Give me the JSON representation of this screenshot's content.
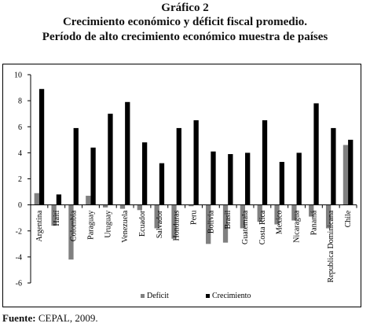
{
  "figure": {
    "label": "Gráfico 2",
    "title": "Crecimiento económico y déficit fiscal promedio.",
    "subtitle": "Período de alto crecimiento económico muestra de países"
  },
  "source": {
    "label": "Fuente:",
    "text": "CEPAL, 2009."
  },
  "chart_data": {
    "type": "bar",
    "categories": [
      "Argentina",
      "Haití",
      "Colombia",
      "Paraguay",
      "Uruguay",
      "Venezuela",
      "Ecuador",
      "Salvador",
      "Honduras",
      "Peru",
      "Bolivia",
      "Brasil",
      "Guatemala",
      "Costa Rica",
      "Mexico",
      "Nicaragua",
      "Panamá",
      "Republica Dominicana",
      "Chile"
    ],
    "series": [
      {
        "name": "Deficit",
        "color": "#808080",
        "values": [
          0.9,
          -1.6,
          -4.2,
          0.7,
          -0.2,
          -0.3,
          -0.4,
          -1.8,
          -2.6,
          -0.1,
          -3.0,
          -2.9,
          -1.8,
          -1.3,
          -1.5,
          -1.2,
          -0.9,
          -1.8,
          4.6
        ]
      },
      {
        "name": "Crecimiento",
        "color": "#000000",
        "values": [
          8.9,
          0.8,
          5.9,
          4.4,
          7.0,
          7.9,
          4.8,
          3.2,
          5.9,
          6.5,
          4.1,
          3.9,
          4.0,
          6.5,
          3.3,
          4.0,
          7.8,
          5.9,
          5.0
        ]
      }
    ],
    "yticks": [
      10,
      8,
      6,
      4,
      2,
      0,
      -2,
      -4,
      -6
    ],
    "ylim": [
      -6,
      10
    ],
    "grid": false,
    "legend_position": "bottom"
  }
}
